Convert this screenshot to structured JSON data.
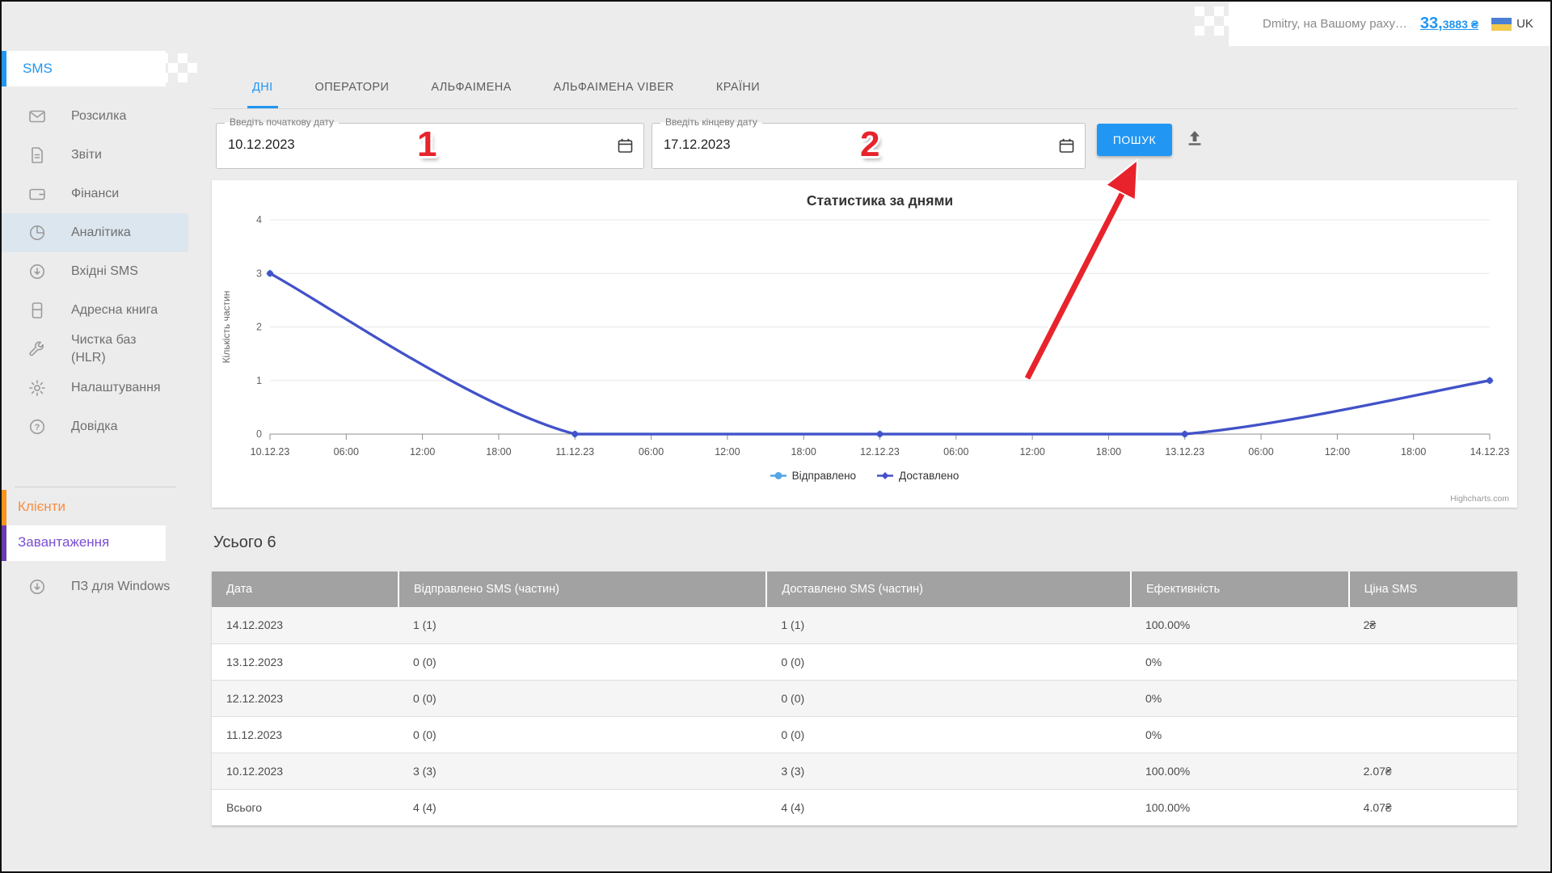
{
  "colors": {
    "accent": "#2196f3",
    "sent_series": "#55a6e6",
    "delivered_series": "#4451c8",
    "annotation_red": "#e8232b",
    "clients_orange": "#f7941d",
    "downloads_purple": "#6a3ab2",
    "table_header_bg": "#a2a2a2"
  },
  "header": {
    "user_text": "Dmitry, на Вашому раху…",
    "balance_int": "33,",
    "balance_frac": "3883 ₴",
    "lang": "UK"
  },
  "sidebar": {
    "section_label": "SMS",
    "items": [
      {
        "label": "Розсилка",
        "icon": "envelope",
        "active": false
      },
      {
        "label": "Звіти",
        "icon": "report",
        "active": false
      },
      {
        "label": "Фінанси",
        "icon": "wallet",
        "active": false
      },
      {
        "label": "Аналітика",
        "icon": "pie",
        "active": true
      },
      {
        "label": "Вхідні SMS",
        "icon": "inbox",
        "active": false
      },
      {
        "label": "Адресна книга",
        "icon": "book",
        "active": false
      },
      {
        "label": "Чистка баз (HLR)",
        "icon": "wrench",
        "active": false
      },
      {
        "label": "Налаштування",
        "icon": "gear",
        "active": false
      },
      {
        "label": "Довідка",
        "icon": "question",
        "active": false
      }
    ],
    "clients_label": "Клієнти",
    "downloads_label": "Завантаження",
    "windows_app_label": "ПЗ для Windows"
  },
  "tabs": [
    {
      "label": "ДНІ",
      "active": true
    },
    {
      "label": "ОПЕРАТОРИ",
      "active": false
    },
    {
      "label": "АЛЬФАІМЕНА",
      "active": false
    },
    {
      "label": "АЛЬФАІМЕНА VIBER",
      "active": false
    },
    {
      "label": "КРАЇНИ",
      "active": false
    }
  ],
  "filters": {
    "start_label": "Введіть початкову дату",
    "start_value": "10.12.2023",
    "end_label": "Введіть кінцеву дату",
    "end_value": "17.12.2023",
    "search_label": "ПОШУК"
  },
  "annotations": {
    "step1": "1",
    "step2": "2"
  },
  "chart_data": {
    "type": "line",
    "title": "Статистика за днями",
    "xlabel": "",
    "ylabel": "Кількість частин",
    "ylim": [
      0,
      4
    ],
    "yticks": [
      0,
      1,
      2,
      3,
      4
    ],
    "x_tick_labels": [
      "10.12.23",
      "06:00",
      "12:00",
      "18:00",
      "11.12.23",
      "06:00",
      "12:00",
      "18:00",
      "12.12.23",
      "06:00",
      "12:00",
      "18:00",
      "13.12.23",
      "06:00",
      "12:00",
      "18:00",
      "14.12.23"
    ],
    "series": [
      {
        "name": "Відправлено",
        "color": "#55a6e6",
        "marker": "circle",
        "x": [
          0,
          4,
          8,
          12,
          16
        ],
        "values": [
          3,
          0,
          0,
          0,
          1
        ]
      },
      {
        "name": "Доставлено",
        "color": "#4451c8",
        "marker": "diamond",
        "x": [
          0,
          4,
          8,
          12,
          16
        ],
        "values": [
          3,
          0,
          0,
          0,
          1
        ]
      }
    ],
    "grid": true,
    "legend_position": "bottom",
    "credit": "Highcharts.com"
  },
  "summary": {
    "total_label": "Усього 6"
  },
  "table": {
    "headers": [
      "Дата",
      "Відправлено SMS (частин)",
      "Доставлено SMS (частин)",
      "Ефективність",
      "Ціна SMS"
    ],
    "rows": [
      [
        "14.12.2023",
        "1 (1)",
        "1 (1)",
        "100.00%",
        "2₴"
      ],
      [
        "13.12.2023",
        "0 (0)",
        "0 (0)",
        "0%",
        ""
      ],
      [
        "12.12.2023",
        "0 (0)",
        "0 (0)",
        "0%",
        ""
      ],
      [
        "11.12.2023",
        "0 (0)",
        "0 (0)",
        "0%",
        ""
      ],
      [
        "10.12.2023",
        "3 (3)",
        "3 (3)",
        "100.00%",
        "2.07₴"
      ],
      [
        "Всього",
        "4 (4)",
        "4 (4)",
        "100.00%",
        "4.07₴"
      ]
    ]
  }
}
